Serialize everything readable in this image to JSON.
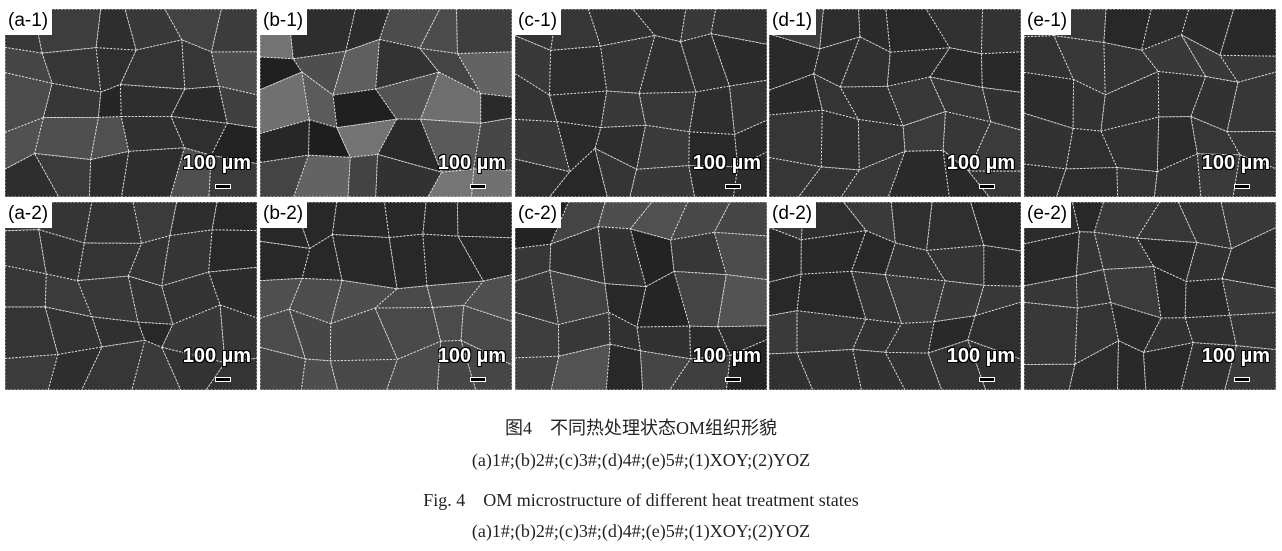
{
  "panels": [
    {
      "label": "(a-1)",
      "scale": "100 µm",
      "tone": "mottled"
    },
    {
      "label": "(b-1)",
      "scale": "100 µm",
      "tone": "contrast"
    },
    {
      "label": "(c-1)",
      "scale": "100 µm",
      "tone": "dark"
    },
    {
      "label": "(d-1)",
      "scale": "100 µm",
      "tone": "dark"
    },
    {
      "label": "(e-1)",
      "scale": "100 µm",
      "tone": "fine"
    },
    {
      "label": "(a-2)",
      "scale": "100 µm",
      "tone": "dark"
    },
    {
      "label": "(b-2)",
      "scale": "100 µm",
      "tone": "banded"
    },
    {
      "label": "(c-2)",
      "scale": "100 µm",
      "tone": "mottled"
    },
    {
      "label": "(d-2)",
      "scale": "100 µm",
      "tone": "dark"
    },
    {
      "label": "(e-2)",
      "scale": "100 µm",
      "tone": "dark"
    }
  ],
  "caption": {
    "cn_title": "图4　不同热处理状态OM组织形貌",
    "cn_legend": "(a)1#;(b)2#;(c)3#;(d)4#;(e)5#;(1)XOY;(2)YOZ",
    "en_title": "Fig. 4　OM microstructure of different heat treatment states",
    "en_legend": "(a)1#;(b)2#;(c)3#;(d)4#;(e)5#;(1)XOY;(2)YOZ"
  }
}
